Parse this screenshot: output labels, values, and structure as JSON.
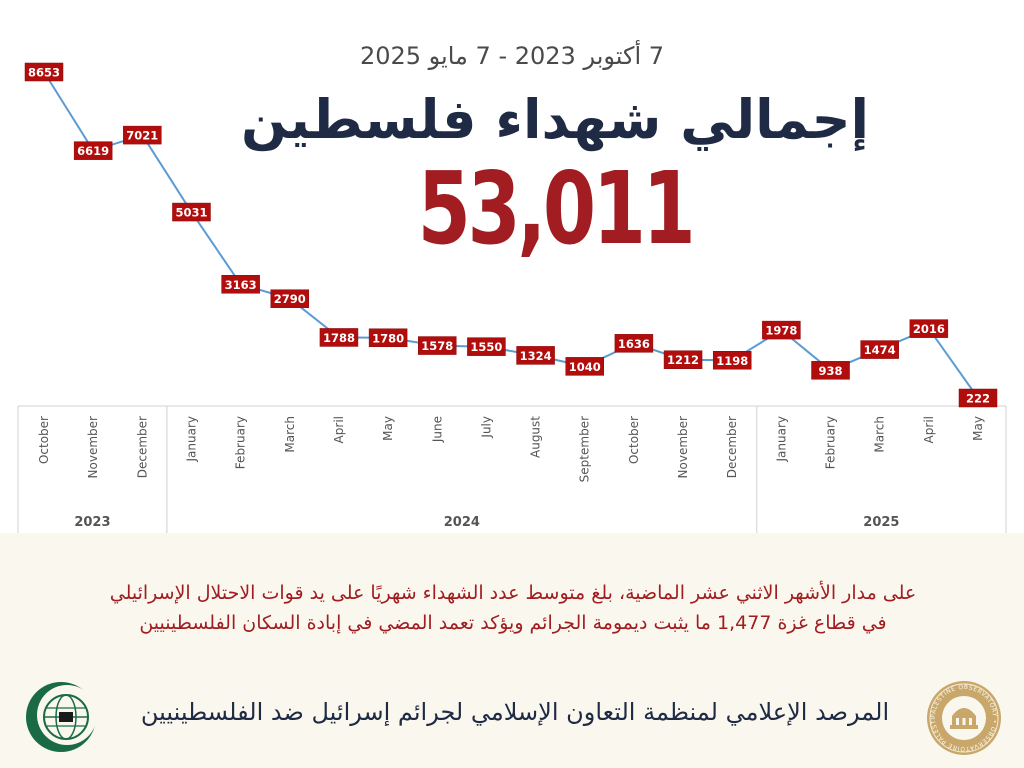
{
  "header": {
    "date_range": "7 أكتوبر 2023 - 7 مايو 2025",
    "title": "إجمالي شهداء فلسطين",
    "total": "53,011"
  },
  "chart_data": {
    "type": "line",
    "title": "",
    "xlabel": "",
    "ylabel": "",
    "x": [
      "October",
      "November",
      "December",
      "January",
      "February",
      "March",
      "April",
      "May",
      "June",
      "July",
      "August",
      "September",
      "October",
      "November",
      "December",
      "January",
      "February",
      "March",
      "April",
      "May"
    ],
    "years": [
      {
        "label": "2023",
        "start": 0,
        "end": 2
      },
      {
        "label": "2024",
        "start": 3,
        "end": 14
      },
      {
        "label": "2025",
        "start": 15,
        "end": 19
      }
    ],
    "series": [
      {
        "values": [
          8653,
          6619,
          7021,
          5031,
          3163,
          2790,
          1788,
          1780,
          1578,
          1550,
          1324,
          1040,
          1636,
          1212,
          1198,
          1978,
          938,
          1474,
          2016,
          222
        ]
      }
    ],
    "ylim": [
      0,
      9000
    ],
    "grid": false,
    "legend": "none",
    "line_color": "#5b9bd5",
    "label_bg": "#b20d0d",
    "label_color": "#ffffff"
  },
  "description": {
    "line1": "على مدار الأشهر الاثني عشر الماضية، بلغ متوسط عدد الشهداء شهريًا على يد قوات الاحتلال الإسرائيلي",
    "line2": "في قطاع غزة 1,477 ما يثبت ديمومة الجرائم ويؤكد تعمد المضي في إبادة السكان الفلسطينيين"
  },
  "footer": {
    "organization": "المرصد الإعلامي لمنظمة التعاون الإسلامي لجرائم إسرائيل ضد الفلسطينيين",
    "logo_left_icon": "oic-globe-crescent-logo",
    "logo_right_icon": "palestine-observatory-seal",
    "seal_text": "PALESTINE OBSERVATORY • OBSERVATOIRE PALESTINE"
  },
  "colors": {
    "title": "#1f2a44",
    "accent_red": "#a11d21",
    "background": "#faf8ee",
    "oic_green": "#1a6b45"
  }
}
